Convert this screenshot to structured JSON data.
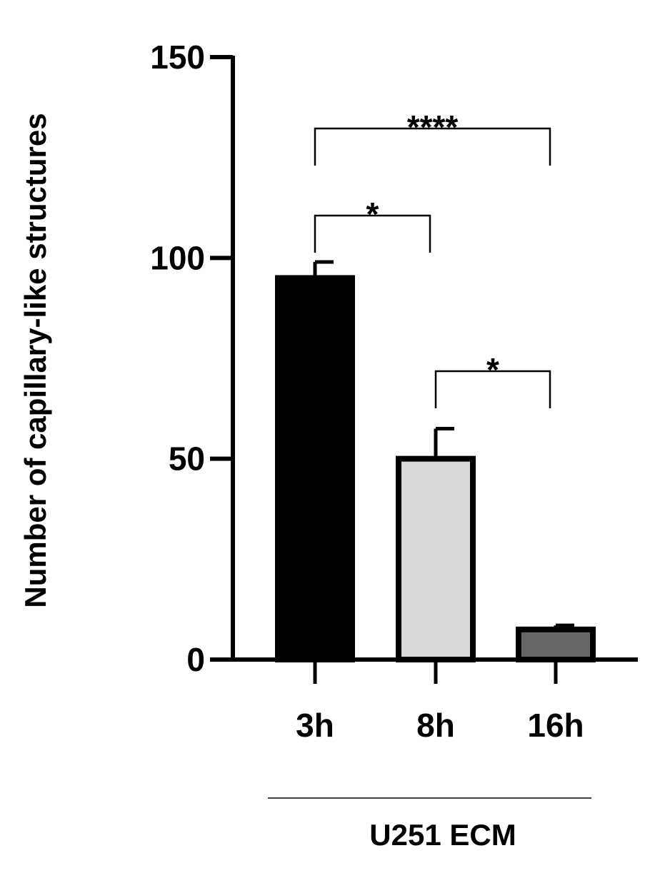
{
  "chart_data": {
    "type": "bar",
    "y_label": "Number of capillary-like structures",
    "categories": [
      "3h",
      "8h",
      "16h"
    ],
    "values": [
      95,
      50,
      7.5
    ],
    "errors": [
      4,
      7.5,
      1
    ],
    "colors": [
      "#000000",
      "#d9d9d9",
      "#666666"
    ],
    "group_label": "U251 ECM",
    "annotations": [
      "*",
      "*",
      "****"
    ],
    "ylim": [
      0,
      150
    ],
    "yticks": [
      0,
      50,
      100,
      150
    ],
    "grid": false
  }
}
